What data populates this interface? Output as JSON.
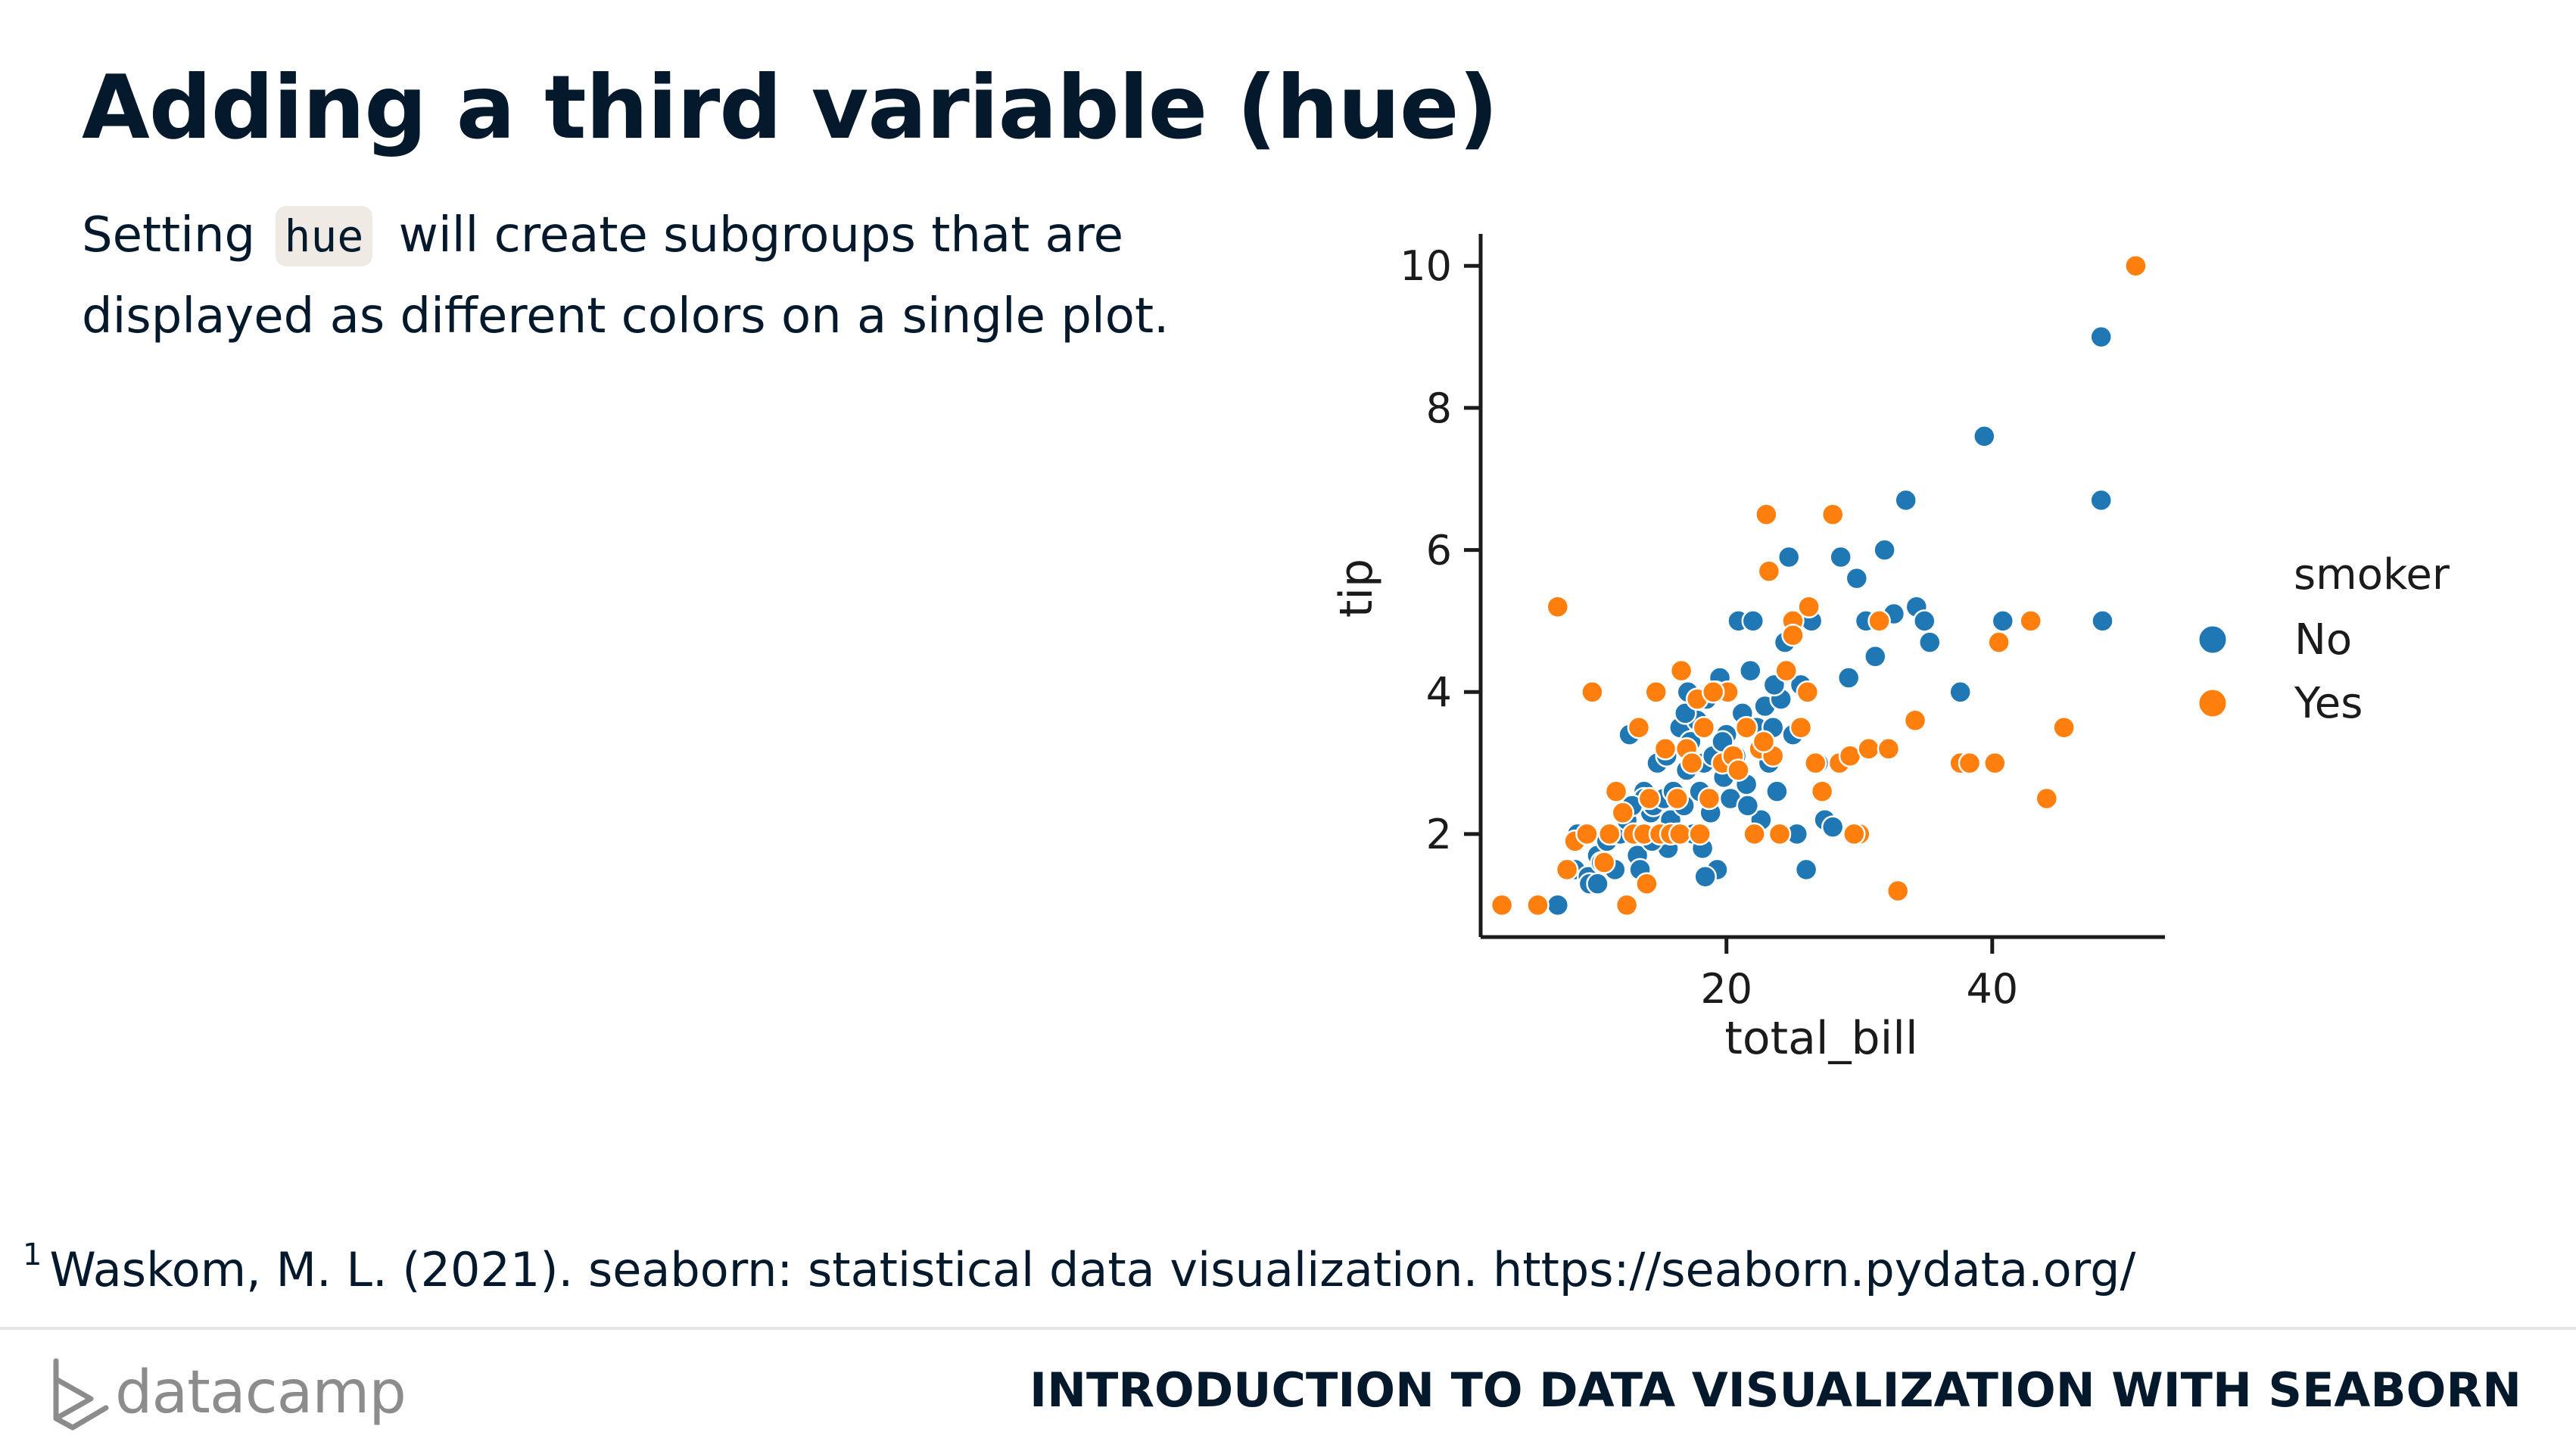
{
  "slide": {
    "title": "Adding a third variable (hue)",
    "body_before": "Setting ",
    "body_code": "hue",
    "body_after": " will create subgroups that are displayed as different colors on a single plot."
  },
  "footnote": {
    "marker": "1",
    "text": "Waskom, M. L. (2021). seaborn: statistical data visualization. https://seaborn.pydata.org/"
  },
  "footer": {
    "brand": "datacamp",
    "course": "INTRODUCTION TO DATA VISUALIZATION WITH SEABORN"
  },
  "colors": {
    "No": "#1f77b4",
    "Yes": "#ff7f0e"
  },
  "chart_data": {
    "type": "scatter",
    "title": "",
    "xlabel": "total_bill",
    "ylabel": "tip",
    "xlim": [
      1.5,
      53
    ],
    "ylim": [
      0.55,
      10.45
    ],
    "x_ticks": [
      20,
      40
    ],
    "y_ticks": [
      2,
      4,
      6,
      8,
      10
    ],
    "grid": false,
    "legend": {
      "title": "smoker",
      "position": "right-outside"
    },
    "series": [
      {
        "name": "No",
        "points": [
          [
            7.3,
            1.0
          ],
          [
            8.6,
            1.5
          ],
          [
            8.8,
            2.0
          ],
          [
            9.6,
            1.4
          ],
          [
            9.7,
            1.3
          ],
          [
            10.3,
            1.7
          ],
          [
            10.3,
            1.3
          ],
          [
            10.6,
            1.6
          ],
          [
            11.0,
            1.9
          ],
          [
            11.4,
            2.0
          ],
          [
            11.6,
            1.5
          ],
          [
            12.0,
            2.0
          ],
          [
            12.5,
            2.2
          ],
          [
            12.7,
            3.4
          ],
          [
            13.0,
            2.0
          ],
          [
            13.3,
            1.7
          ],
          [
            13.5,
            1.5
          ],
          [
            13.8,
            2.6
          ],
          [
            14.0,
            2.0
          ],
          [
            14.3,
            2.3
          ],
          [
            14.5,
            2.4
          ],
          [
            14.8,
            3.0
          ],
          [
            15.0,
            1.9
          ],
          [
            15.3,
            2.5
          ],
          [
            15.5,
            3.1
          ],
          [
            15.8,
            2.2
          ],
          [
            16.0,
            2.6
          ],
          [
            16.3,
            2.0
          ],
          [
            16.5,
            3.5
          ],
          [
            16.8,
            2.4
          ],
          [
            17.0,
            2.9
          ],
          [
            17.3,
            3.3
          ],
          [
            17.5,
            2.0
          ],
          [
            17.8,
            3.6
          ],
          [
            18.0,
            2.6
          ],
          [
            18.3,
            3.0
          ],
          [
            18.5,
            3.9
          ],
          [
            18.8,
            2.3
          ],
          [
            19.0,
            3.1
          ],
          [
            19.3,
            1.5
          ],
          [
            19.5,
            4.2
          ],
          [
            19.8,
            2.8
          ],
          [
            20.0,
            3.4
          ],
          [
            20.3,
            2.5
          ],
          [
            20.6,
            3.0
          ],
          [
            20.9,
            5.0
          ],
          [
            21.2,
            3.7
          ],
          [
            21.5,
            2.7
          ],
          [
            21.8,
            4.3
          ],
          [
            22.0,
            5.0
          ],
          [
            22.3,
            3.5
          ],
          [
            22.6,
            2.2
          ],
          [
            22.9,
            3.8
          ],
          [
            23.2,
            3.0
          ],
          [
            23.5,
            3.5
          ],
          [
            23.8,
            2.6
          ],
          [
            24.1,
            3.9
          ],
          [
            24.4,
            4.7
          ],
          [
            24.7,
            5.9
          ],
          [
            25.0,
            3.4
          ],
          [
            25.3,
            2.0
          ],
          [
            25.6,
            4.1
          ],
          [
            26.0,
            1.5
          ],
          [
            26.4,
            5.0
          ],
          [
            26.9,
            3.0
          ],
          [
            27.4,
            2.2
          ],
          [
            28.0,
            2.1
          ],
          [
            28.6,
            5.9
          ],
          [
            29.2,
            4.2
          ],
          [
            29.8,
            5.6
          ],
          [
            30.5,
            5.0
          ],
          [
            31.2,
            4.5
          ],
          [
            31.9,
            6.0
          ],
          [
            32.6,
            5.1
          ],
          [
            33.5,
            6.7
          ],
          [
            34.3,
            5.2
          ],
          [
            34.9,
            5.0
          ],
          [
            35.3,
            4.7
          ],
          [
            37.6,
            4.0
          ],
          [
            39.4,
            7.6
          ],
          [
            40.8,
            5.0
          ],
          [
            48.2,
            9.0
          ],
          [
            48.2,
            6.7
          ],
          [
            48.3,
            5.0
          ],
          [
            13.8,
            2.5
          ],
          [
            15.6,
            1.8
          ],
          [
            17.1,
            4.0
          ],
          [
            18.2,
            1.8
          ],
          [
            20.7,
            3.1
          ],
          [
            21.6,
            2.4
          ],
          [
            16.9,
            3.7
          ],
          [
            19.7,
            3.3
          ],
          [
            12.9,
            2.4
          ],
          [
            14.4,
            1.9
          ],
          [
            23.6,
            4.1
          ],
          [
            18.4,
            1.4
          ]
        ]
      },
      {
        "name": "Yes",
        "points": [
          [
            3.1,
            1.0
          ],
          [
            5.8,
            1.0
          ],
          [
            7.3,
            5.2
          ],
          [
            8.0,
            1.5
          ],
          [
            8.6,
            1.9
          ],
          [
            9.5,
            2.0
          ],
          [
            9.9,
            4.0
          ],
          [
            10.8,
            1.6
          ],
          [
            11.2,
            2.0
          ],
          [
            11.7,
            2.6
          ],
          [
            12.2,
            2.3
          ],
          [
            12.5,
            1.0
          ],
          [
            13.0,
            2.0
          ],
          [
            13.4,
            3.5
          ],
          [
            13.8,
            2.0
          ],
          [
            14.2,
            2.5
          ],
          [
            14.7,
            4.0
          ],
          [
            15.0,
            2.0
          ],
          [
            15.4,
            3.2
          ],
          [
            15.8,
            2.0
          ],
          [
            16.3,
            2.5
          ],
          [
            16.6,
            4.3
          ],
          [
            17.0,
            3.2
          ],
          [
            17.4,
            3.0
          ],
          [
            17.8,
            3.9
          ],
          [
            18.3,
            3.5
          ],
          [
            18.7,
            2.5
          ],
          [
            19.2,
            4.0
          ],
          [
            19.7,
            3.0
          ],
          [
            20.1,
            4.0
          ],
          [
            20.5,
            3.1
          ],
          [
            20.9,
            2.9
          ],
          [
            21.5,
            3.5
          ],
          [
            22.1,
            2.0
          ],
          [
            22.5,
            3.2
          ],
          [
            23.0,
            6.5
          ],
          [
            23.2,
            5.7
          ],
          [
            23.5,
            3.1
          ],
          [
            24.0,
            2.0
          ],
          [
            24.5,
            4.3
          ],
          [
            25.0,
            5.0
          ],
          [
            25.6,
            3.5
          ],
          [
            26.1,
            4.0
          ],
          [
            26.7,
            3.0
          ],
          [
            27.2,
            2.6
          ],
          [
            28.0,
            6.5
          ],
          [
            28.5,
            3.0
          ],
          [
            29.3,
            3.1
          ],
          [
            30.0,
            2.0
          ],
          [
            30.7,
            3.2
          ],
          [
            31.5,
            5.0
          ],
          [
            32.2,
            3.2
          ],
          [
            32.9,
            1.2
          ],
          [
            34.2,
            3.6
          ],
          [
            37.6,
            3.0
          ],
          [
            38.3,
            3.0
          ],
          [
            40.2,
            3.0
          ],
          [
            40.5,
            4.7
          ],
          [
            42.9,
            5.0
          ],
          [
            44.1,
            2.5
          ],
          [
            45.4,
            3.5
          ],
          [
            50.8,
            10.0
          ],
          [
            26.2,
            5.2
          ],
          [
            22.8,
            3.3
          ],
          [
            19.0,
            4.0
          ],
          [
            16.5,
            2.0
          ],
          [
            14.0,
            1.3
          ],
          [
            25.0,
            4.8
          ],
          [
            29.6,
            2.0
          ],
          [
            18.0,
            2.0
          ]
        ]
      }
    ]
  }
}
